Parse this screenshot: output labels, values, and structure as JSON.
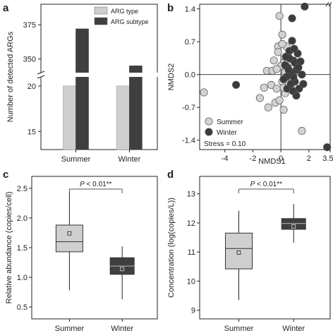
{
  "chart_data": [
    {
      "panel": "a",
      "type": "bar",
      "ylabel": "Number of detected ARGs",
      "categories": [
        "Summer",
        "Winter"
      ],
      "series": [
        {
          "name": "ARG type",
          "values": [
            20,
            20
          ],
          "color": "#cfcfcf"
        },
        {
          "name": "ARG subtype",
          "values": [
            372,
            345
          ],
          "color": "#3f3f3f"
        }
      ],
      "axis_break": {
        "lower_range": [
          13,
          21
        ],
        "upper_range": [
          340,
          390
        ]
      },
      "yticks_lower": [
        "15",
        "20"
      ],
      "yticks_upper": [
        "350",
        "375"
      ],
      "legend": "top-right"
    },
    {
      "panel": "b",
      "type": "scatter",
      "xlabel": "NMDS1",
      "ylabel": "NMDS2",
      "xlim": [
        -5.8,
        3.52
      ],
      "ylim": [
        -1.6,
        1.5
      ],
      "xticks": [
        "-4",
        "-2",
        "0",
        "2",
        "3.52"
      ],
      "yticks": [
        "1.4",
        "0.7",
        "0.0",
        "-0.7",
        "-1.4"
      ],
      "annotation": "Stress = 0.10",
      "legend": "bottom-left",
      "series": [
        {
          "name": "Summer",
          "color": "#d2d2d2",
          "points": [
            [
              -5.5,
              -0.38
            ],
            [
              -1.0,
              0.08
            ],
            [
              -0.6,
              0.08
            ],
            [
              -0.1,
              1.25
            ],
            [
              0.1,
              0.85
            ],
            [
              -0.2,
              0.6
            ],
            [
              -1.5,
              -0.5
            ],
            [
              -1.2,
              -0.28
            ],
            [
              -0.7,
              -0.22
            ],
            [
              -0.3,
              -0.3
            ],
            [
              -0.2,
              0.48
            ],
            [
              -0.5,
              0.3
            ],
            [
              0.2,
              0.25
            ],
            [
              0.3,
              0.05
            ],
            [
              0.1,
              -0.15
            ],
            [
              -0.4,
              -0.6
            ],
            [
              0.2,
              -0.75
            ],
            [
              -0.1,
              -0.55
            ],
            [
              0.5,
              0.32
            ],
            [
              0.3,
              -0.4
            ],
            [
              0.0,
              0.18
            ],
            [
              0.4,
              0.6
            ],
            [
              0.6,
              0.02
            ],
            [
              0.7,
              -0.25
            ],
            [
              1.5,
              -1.2
            ],
            [
              0.1,
              0.65
            ],
            [
              -0.9,
              -0.7
            ],
            [
              -0.3,
              0.12
            ],
            [
              0.8,
              -0.1
            ],
            [
              0.2,
              -0.28
            ]
          ]
        },
        {
          "name": "Winter",
          "color": "#3c3c3c",
          "points": [
            [
              1.7,
              1.45
            ],
            [
              0.8,
              1.2
            ],
            [
              -3.2,
              -0.22
            ],
            [
              3.3,
              -1.55
            ],
            [
              0.9,
              0.3
            ],
            [
              1.1,
              0.1
            ],
            [
              0.6,
              0.5
            ],
            [
              0.4,
              -0.05
            ],
            [
              0.5,
              0.15
            ],
            [
              1.0,
              -0.15
            ],
            [
              1.3,
              -0.3
            ],
            [
              0.7,
              -0.2
            ],
            [
              0.3,
              0.2
            ],
            [
              1.2,
              0.45
            ],
            [
              0.8,
              0.72
            ],
            [
              1.5,
              0.0
            ],
            [
              0.9,
              -0.05
            ],
            [
              0.6,
              0.35
            ],
            [
              0.45,
              -0.3
            ],
            [
              1.0,
              0.25
            ],
            [
              0.2,
              -0.1
            ],
            [
              1.4,
              0.28
            ],
            [
              0.7,
              0.05
            ],
            [
              1.1,
              -0.45
            ],
            [
              0.55,
              0.1
            ],
            [
              0.85,
              -0.35
            ],
            [
              1.25,
              0.15
            ],
            [
              0.35,
              0.38
            ],
            [
              1.6,
              -0.2
            ],
            [
              0.95,
              0.55
            ]
          ]
        }
      ]
    },
    {
      "panel": "c",
      "type": "box",
      "ylabel": "Relative abundance (copies/cell)",
      "categories": [
        "Summer",
        "Winter"
      ],
      "ylim": [
        0.3,
        2.7
      ],
      "yticks": [
        "0.5",
        "1.0",
        "1.5",
        "2.0",
        "2.5"
      ],
      "boxes": [
        {
          "name": "Summer",
          "min": 0.78,
          "q1": 1.43,
          "median": 1.6,
          "mean": 1.74,
          "q3": 1.88,
          "max": 2.44,
          "color": "#cfcfcf"
        },
        {
          "name": "Winter",
          "min": 0.63,
          "q1": 1.05,
          "median": 1.19,
          "mean": 1.14,
          "q3": 1.33,
          "max": 1.52,
          "color": "#3f3f3f"
        }
      ],
      "sig_label_italic": "P",
      "sig_label_rest": " < 0.01**"
    },
    {
      "panel": "d",
      "type": "box",
      "ylabel": "Concentration (log(copies/L))",
      "categories": [
        "Summer",
        "Winter"
      ],
      "ylim": [
        8.7,
        13.6
      ],
      "yticks": [
        "9",
        "10",
        "11",
        "12",
        "13"
      ],
      "boxes": [
        {
          "name": "Summer",
          "min": 9.35,
          "q1": 10.42,
          "median": 11.12,
          "mean": 10.98,
          "q3": 11.65,
          "max": 12.42,
          "color": "#cfcfcf"
        },
        {
          "name": "Winter",
          "min": 11.32,
          "q1": 11.78,
          "median": 11.98,
          "mean": 11.88,
          "q3": 12.15,
          "max": 12.65,
          "color": "#3f3f3f"
        }
      ],
      "sig_label_italic": "P",
      "sig_label_rest": " < 0.01**"
    }
  ]
}
